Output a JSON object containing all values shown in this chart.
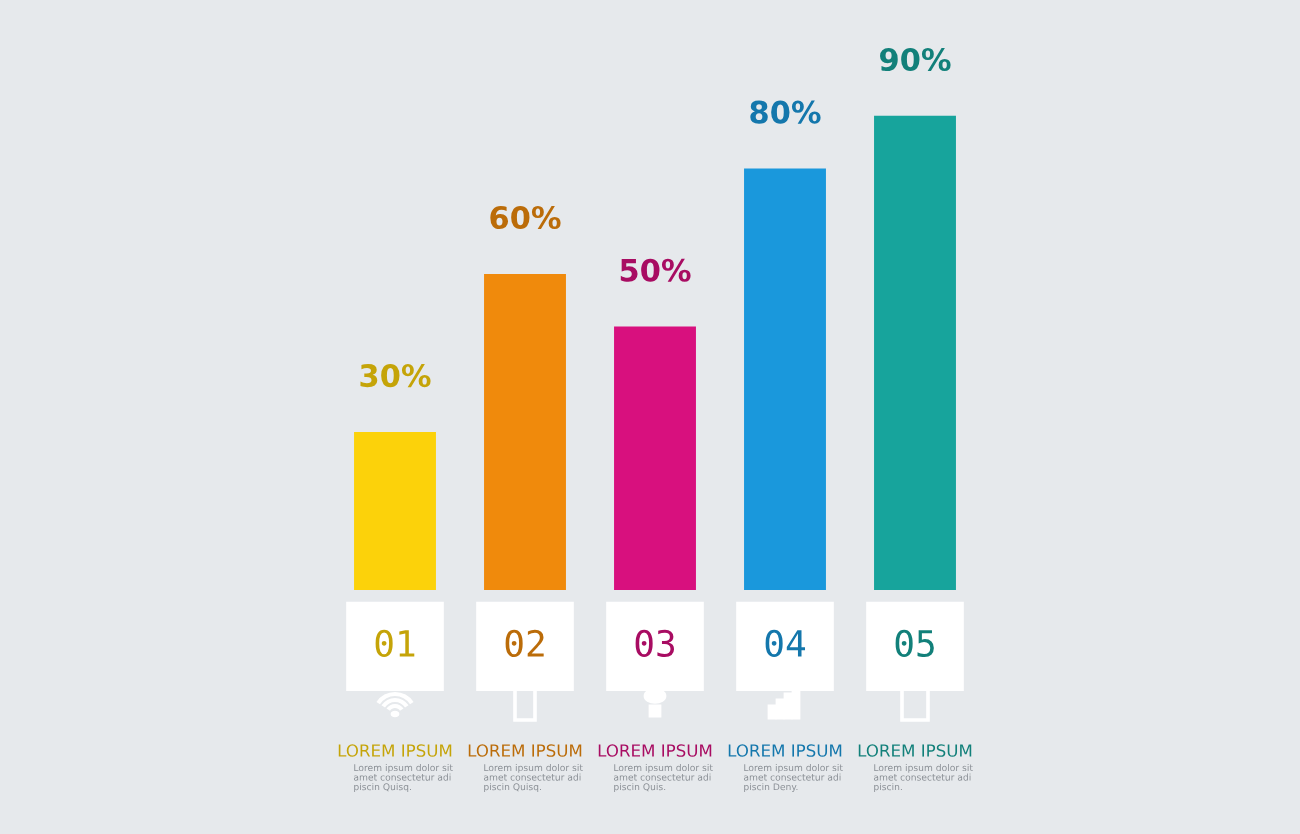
{
  "chart_data": {
    "type": "bar",
    "categories": [
      "01",
      "02",
      "03",
      "04",
      "05"
    ],
    "values": [
      30,
      60,
      50,
      80,
      90
    ],
    "colors": [
      "#fcd20a",
      "#f08a0c",
      "#d8107e",
      "#1a98dc",
      "#17a49c"
    ],
    "value_labels": [
      "30%",
      "60%",
      "50%",
      "80%",
      "90%"
    ],
    "annotations": [
      "LOREM IPSUM",
      "LOREM IPSUM",
      "LOREM IPSUM",
      "LOREM IPSUM",
      "LOREM IPSUM",
      "Lorem ipsum dolor sit\namet consectetur adi\npiscin Quisq.",
      "Lorem ipsum dolor sit\namet consectetur adi\npiscin Quisq.",
      "Lorem ipsum dolor sit\namet consectetur adi\npiscin Quis.",
      "Lorem ipsum dolor sit\namet consectetur adi\npiscin Deny.",
      "Lorem ipsum dolor sit\namet consectetur adi\npiscin."
    ]
  }
}
